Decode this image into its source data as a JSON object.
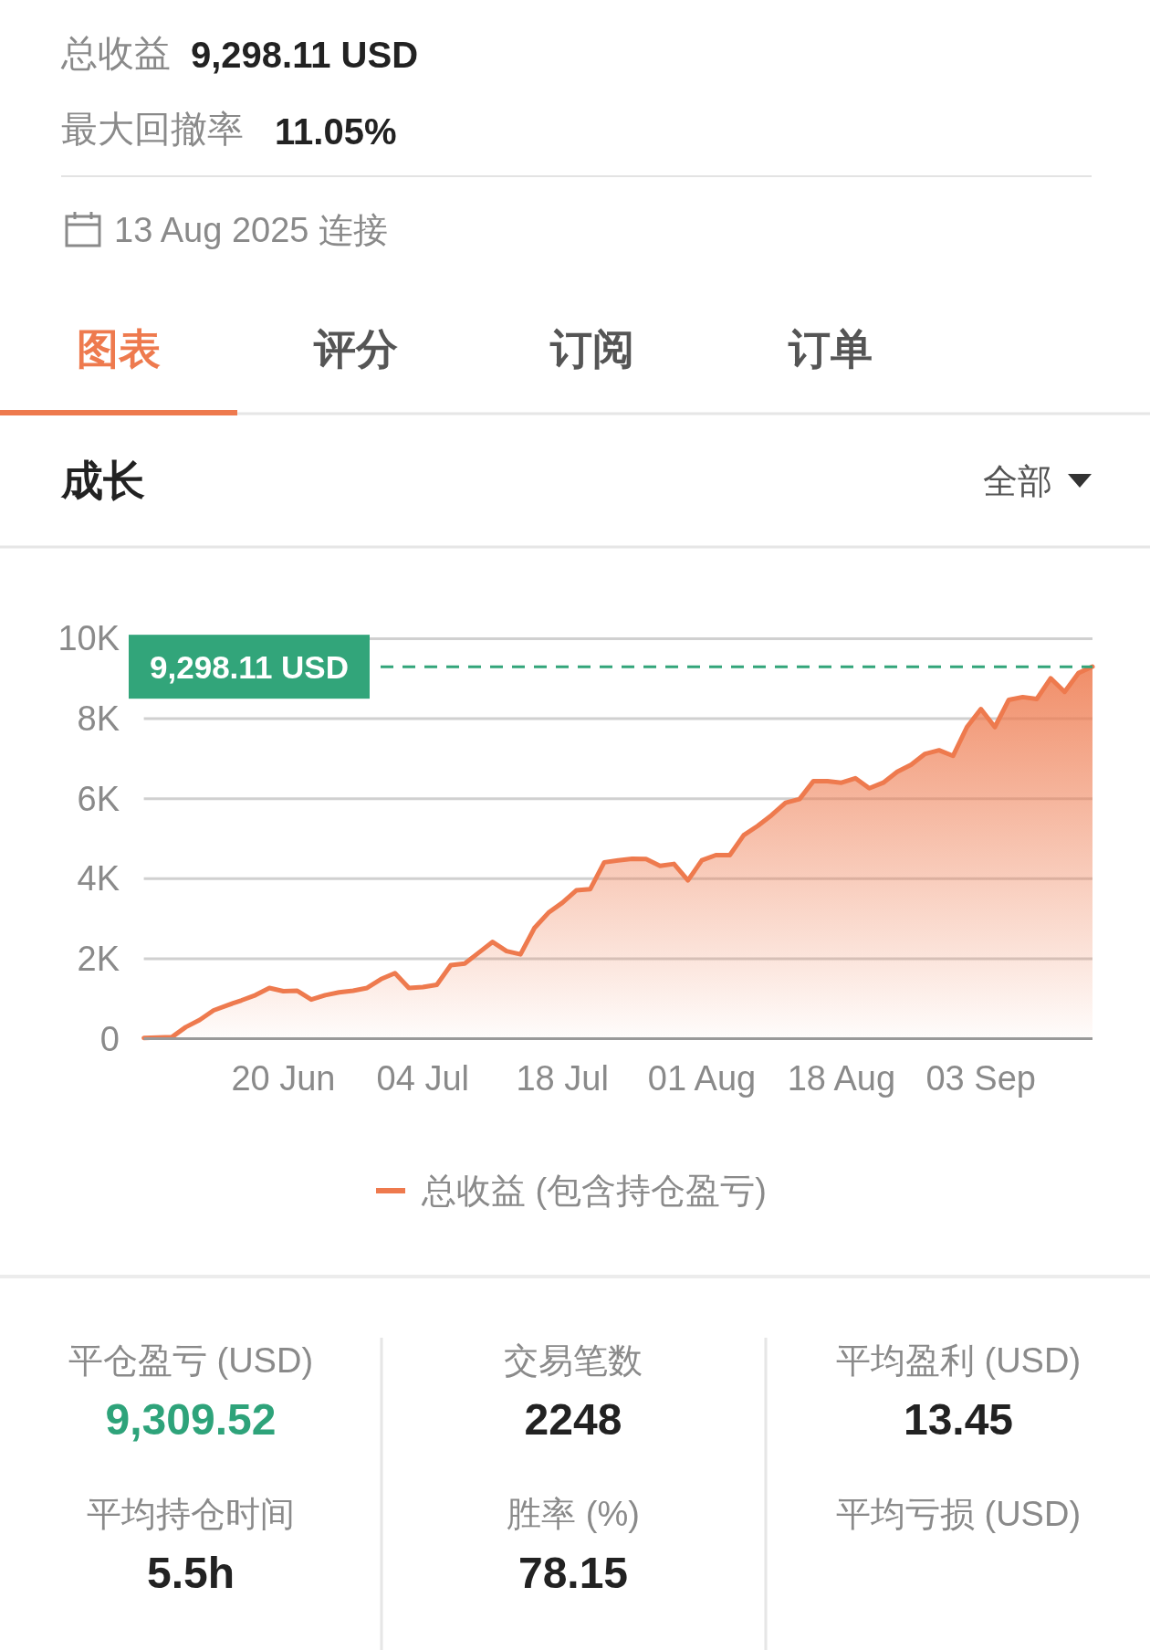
{
  "chart_data": [
    {
      "type": "other",
      "annotations": [
        "总收益",
        "9,298.11 USD",
        "最大回撤率",
        "11.05%",
        "13 Aug 2025 连接",
        "图表",
        "评分",
        "订阅",
        "订单",
        "全部"
      ]
    },
    {
      "type": "area",
      "title": "成长",
      "categories": [
        null,
        null,
        null,
        null,
        null,
        null,
        null,
        null,
        null,
        null,
        "20 Jun",
        null,
        null,
        null,
        null,
        null,
        null,
        null,
        null,
        null,
        "04 Jul",
        null,
        null,
        null,
        null,
        null,
        null,
        null,
        null,
        null,
        "18 Jul",
        null,
        null,
        null,
        null,
        null,
        null,
        null,
        null,
        null,
        "01 Aug",
        null,
        null,
        null,
        null,
        null,
        null,
        null,
        null,
        null,
        "18 Aug",
        null,
        null,
        null,
        null,
        null,
        null,
        null,
        null,
        null,
        "03 Sep",
        null,
        null,
        null,
        null,
        null,
        null,
        null,
        null
      ],
      "series": [
        {
          "name": "总收益 (包含持仓盈亏)",
          "color": "#ee7a4e",
          "values": [
            20,
            30,
            40,
            290,
            470,
            710,
            840,
            960,
            1090,
            1270,
            1190,
            1200,
            980,
            1090,
            1160,
            1200,
            1270,
            1490,
            1640,
            1270,
            1290,
            1350,
            1840,
            1880,
            2150,
            2420,
            2190,
            2110,
            2770,
            3150,
            3400,
            3710,
            3740,
            4410,
            4460,
            4500,
            4490,
            4320,
            4370,
            3960,
            4460,
            4590,
            4590,
            5090,
            5320,
            5590,
            5900,
            5990,
            6440,
            6440,
            6400,
            6510,
            6260,
            6400,
            6670,
            6850,
            7120,
            7210,
            7070,
            7790,
            8240,
            7790,
            8470,
            8540,
            8490,
            9010,
            8670,
            9140,
            9300
          ]
        }
      ],
      "ylim": [
        0,
        10000
      ],
      "yticks": [
        {
          "value": 0,
          "label": "0"
        },
        {
          "value": 2000,
          "label": "2K"
        },
        {
          "value": 4000,
          "label": "4K"
        },
        {
          "value": 6000,
          "label": "6K"
        },
        {
          "value": 8000,
          "label": "8K"
        },
        {
          "value": 10000,
          "label": "10K"
        }
      ],
      "grid": "y",
      "legend": "bottom",
      "ref_lines": [
        {
          "axis": "y",
          "value": 9298.11,
          "label": "9,298.11 USD",
          "color": "#32a57a",
          "line_style": "dashed"
        }
      ]
    },
    {
      "type": "other",
      "annotations": [
        "平仓盈亏 (USD)",
        "9,309.52",
        "交易笔数",
        "2248",
        "平均盈利 (USD)",
        "13.45",
        "平均持仓时间",
        "5.5h",
        "胜率 (%)",
        "78.15",
        "平均亏损 (USD)"
      ]
    }
  ]
}
